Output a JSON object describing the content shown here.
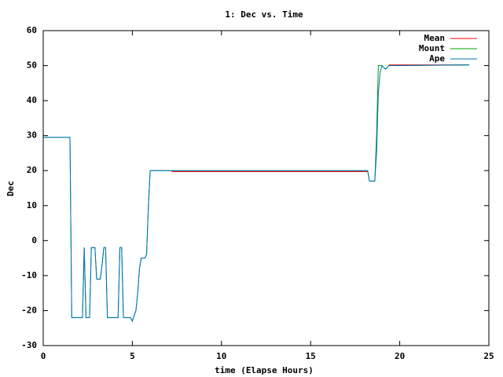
{
  "chart_data": {
    "type": "line",
    "title": "1: Dec vs. Time",
    "x_label": "time (Elapse Hours)",
    "y_label": "Dec",
    "xlim": [
      0,
      25
    ],
    "xticks": [
      0,
      5,
      10,
      15,
      20,
      25
    ],
    "ylim": [
      -30,
      60
    ],
    "yticks": [
      -30,
      -20,
      -10,
      0,
      10,
      20,
      30,
      40,
      50,
      60
    ],
    "grid": false,
    "legend": "top-right",
    "series": [
      {
        "name": "Mean",
        "color": "#ff0000",
        "x": [
          7.2,
          18.2,
          18.3,
          19.4,
          23.9
        ],
        "values": [
          19.7,
          19.7,
          null,
          50.2,
          50.2
        ]
      },
      {
        "name": "Mount",
        "color": "#00a000",
        "x": [
          0,
          1.5,
          1.6,
          2.2,
          2.3,
          2.4,
          2.6,
          2.7,
          2.9,
          3.0,
          3.2,
          3.3,
          3.4,
          3.5,
          3.6,
          4.2,
          4.3,
          4.4,
          4.5,
          4.9,
          5.0,
          5.2,
          5.3,
          5.4,
          5.5,
          5.7,
          5.8,
          5.9,
          6.0,
          18.2,
          18.3,
          18.6,
          18.7,
          18.8,
          19.0,
          19.2,
          19.4,
          23.9
        ],
        "values": [
          29.5,
          29.5,
          -22,
          -22,
          -2,
          -22,
          -22,
          -2,
          -2,
          -11,
          -11,
          -7,
          -2,
          -2,
          -22,
          -22,
          -2,
          -2,
          -22,
          -22,
          -23,
          -20,
          -15,
          -8,
          -5,
          -5,
          -4,
          10,
          20,
          20,
          17,
          17,
          30,
          50,
          50,
          49,
          50,
          50.2
        ]
      },
      {
        "name": "Ape",
        "color": "#0070c0",
        "x": [
          0,
          1.5,
          1.6,
          2.2,
          2.3,
          2.4,
          2.6,
          2.7,
          2.9,
          3.0,
          3.2,
          3.3,
          3.4,
          3.5,
          3.6,
          4.2,
          4.3,
          4.4,
          4.5,
          4.9,
          5.0,
          5.2,
          5.3,
          5.4,
          5.5,
          5.7,
          5.8,
          5.9,
          6.0,
          18.2,
          18.3,
          18.6,
          18.7,
          18.8,
          18.9,
          19.0,
          19.2,
          19.4,
          23.9
        ],
        "values": [
          29.5,
          29.5,
          -22,
          -22,
          -2,
          -22,
          -22,
          -2,
          -2,
          -11,
          -11,
          -7,
          -2,
          -2,
          -22,
          -22,
          -2,
          -2,
          -22,
          -22,
          -23,
          -20,
          -15,
          -8,
          -5,
          -5,
          -4,
          10,
          20,
          20,
          17,
          17,
          25,
          42,
          48,
          50,
          49,
          50,
          50.2
        ]
      }
    ]
  }
}
